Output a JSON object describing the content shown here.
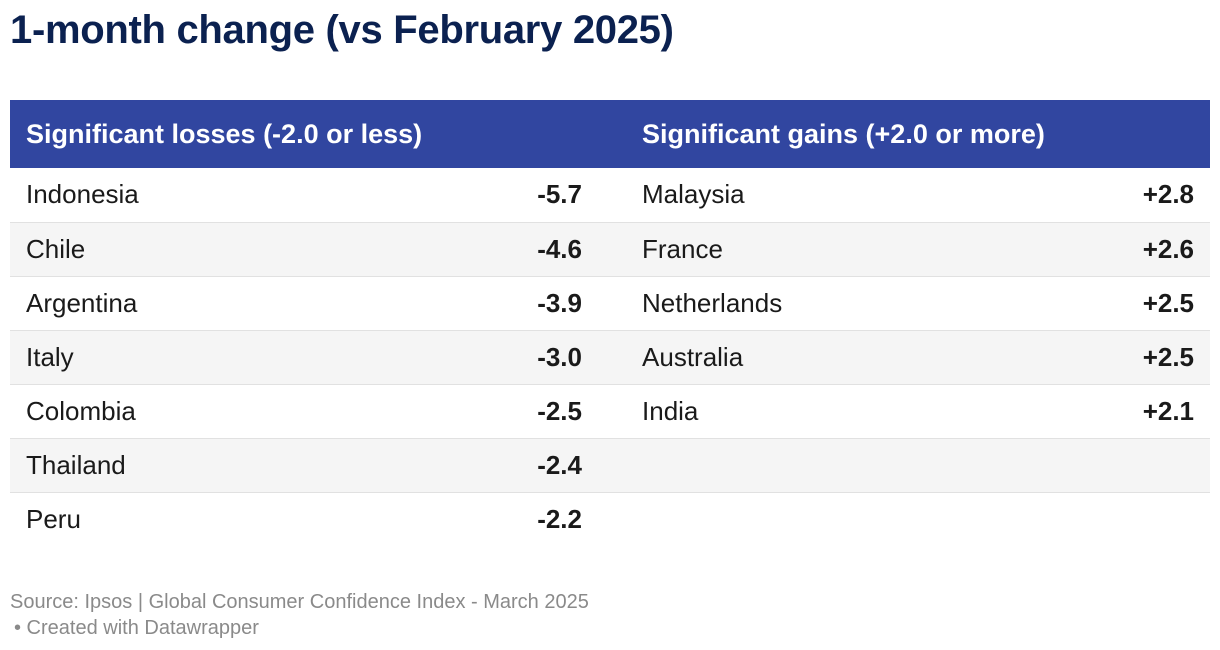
{
  "title": "1-month change (vs February 2025)",
  "colors": {
    "header_bg": "#3146a0",
    "title": "#0b2150",
    "loss": "#c0262a",
    "gain": "#1bb19a"
  },
  "chart_data": {
    "type": "table",
    "title": "1-month change (vs February 2025)",
    "columns": [
      "Significant losses (-2.0 or less)",
      "Significant gains (+2.0 or more)"
    ],
    "losses": {
      "header": "Significant losses (-2.0 or less)",
      "rows": [
        {
          "country": "Indonesia",
          "value": "-5.7"
        },
        {
          "country": "Chile",
          "value": "-4.6"
        },
        {
          "country": "Argentina",
          "value": "-3.9"
        },
        {
          "country": "Italy",
          "value": "-3.0"
        },
        {
          "country": "Colombia",
          "value": "-2.5"
        },
        {
          "country": "Thailand",
          "value": "-2.4"
        },
        {
          "country": "Peru",
          "value": "-2.2"
        }
      ]
    },
    "gains": {
      "header": "Significant gains (+2.0 or more)",
      "rows": [
        {
          "country": "Malaysia",
          "value": "+2.8"
        },
        {
          "country": "France",
          "value": "+2.6"
        },
        {
          "country": "Netherlands",
          "value": "+2.5"
        },
        {
          "country": "Australia",
          "value": "+2.5"
        },
        {
          "country": "India",
          "value": "+2.1"
        }
      ]
    }
  },
  "footer": {
    "source": "Source: Ipsos | Global Consumer Confidence Index - March 2025",
    "credit": "• Created with Datawrapper"
  }
}
